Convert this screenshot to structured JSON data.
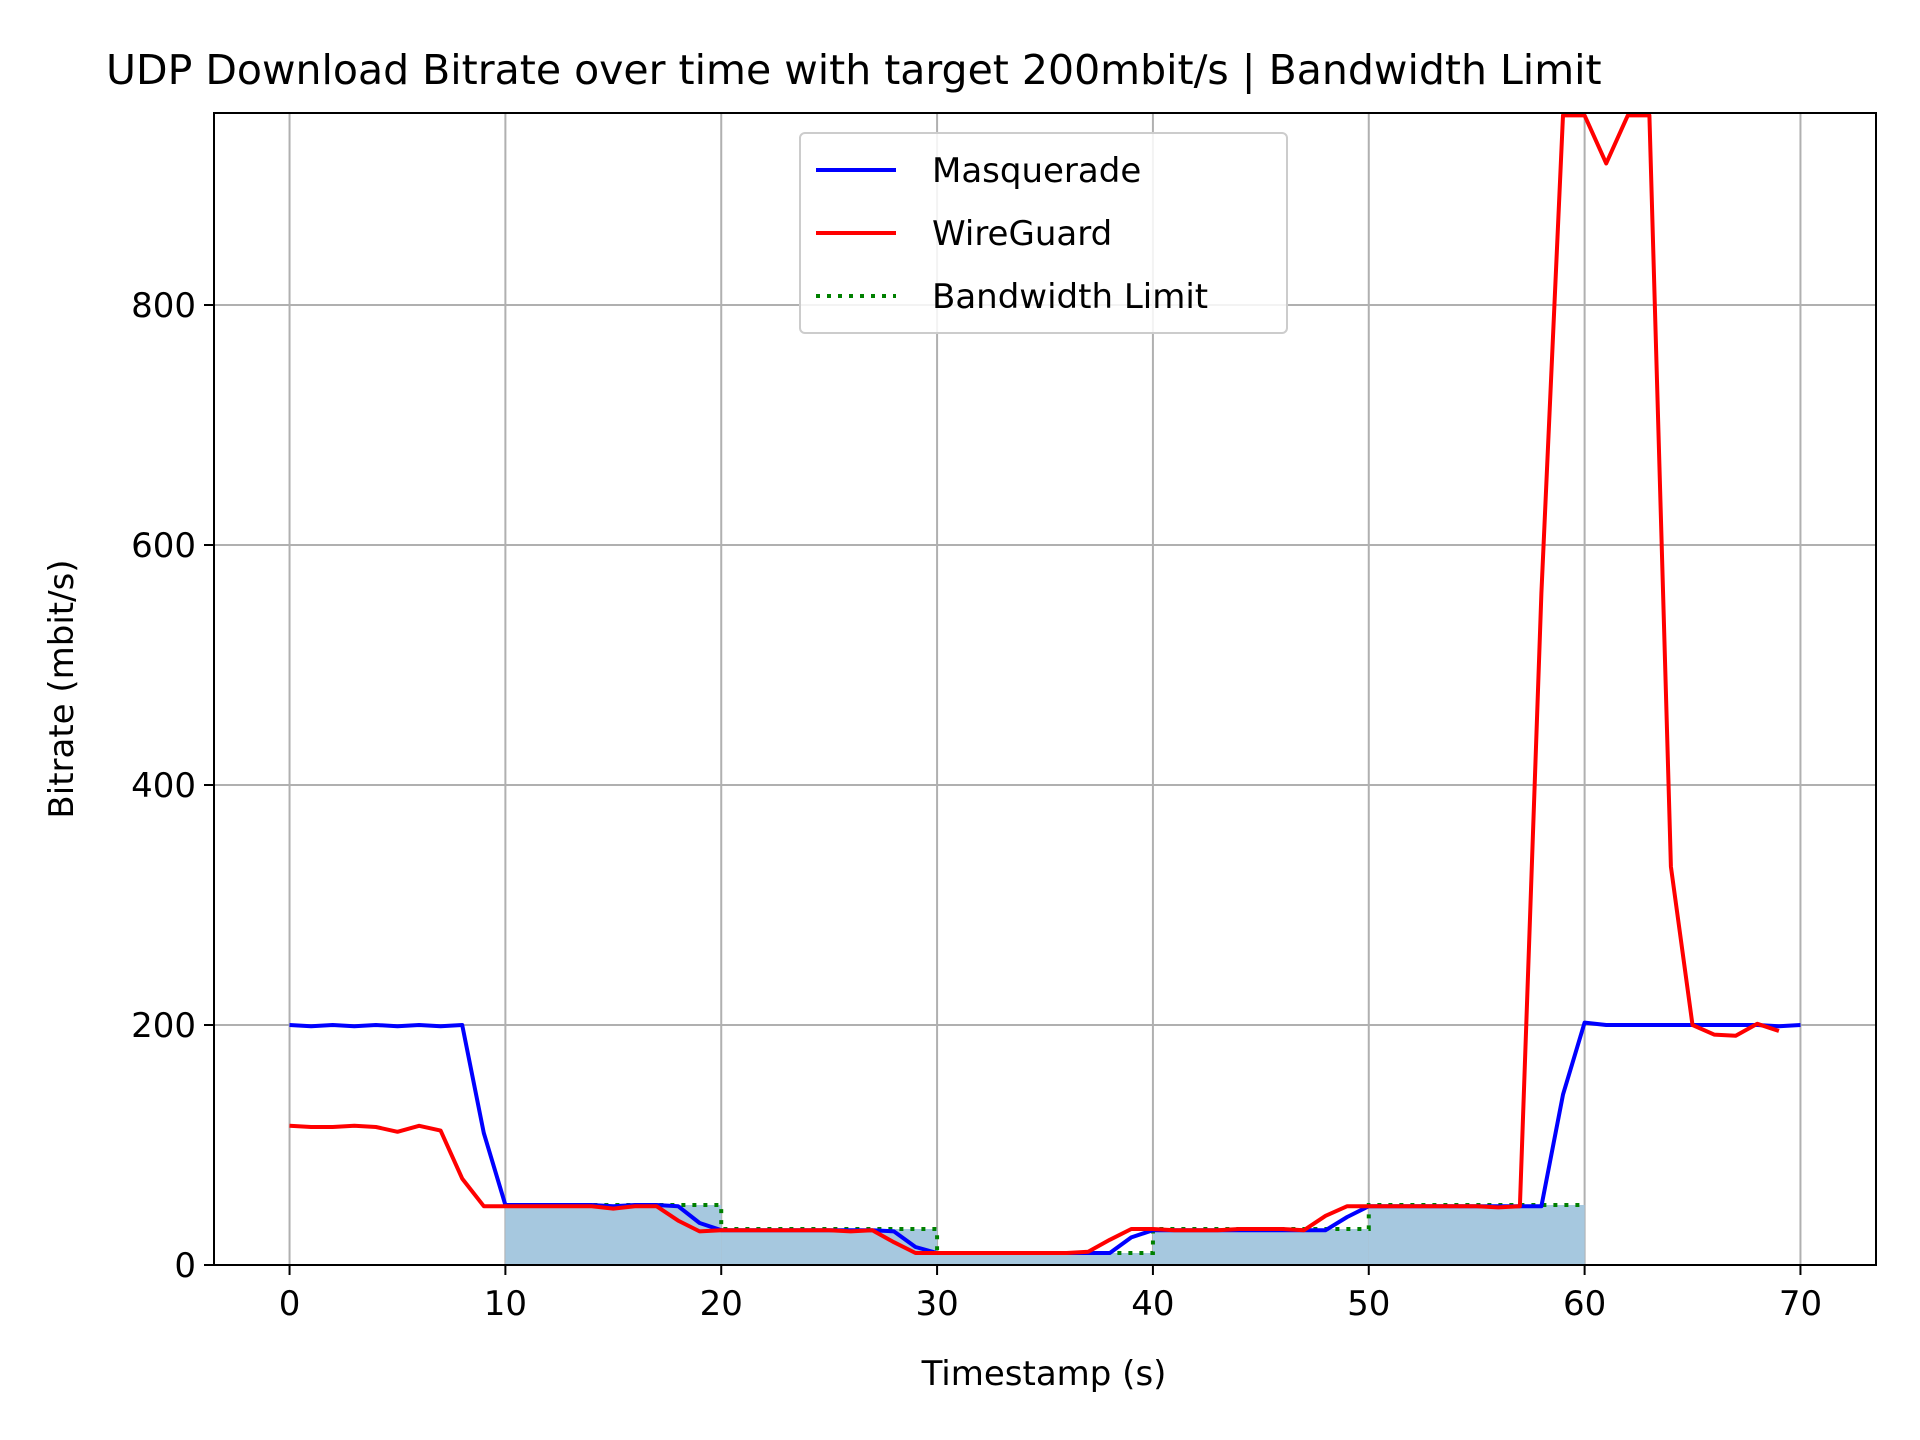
{
  "chart_data": {
    "type": "line",
    "title": "UDP Download Bitrate over time with target 200mbit/s | Bandwidth Limit",
    "xlabel": "Timestamp (s)",
    "ylabel": "Bitrate (mbit/s)",
    "xlim": [
      -3.5,
      73.5
    ],
    "ylim": [
      0,
      960
    ],
    "xticks": [
      0,
      10,
      20,
      30,
      40,
      50,
      60,
      70
    ],
    "yticks": [
      0,
      200,
      400,
      600,
      800
    ],
    "grid": true,
    "legend_position": "upper-center",
    "series": [
      {
        "name": "Masquerade",
        "color": "#0000ff",
        "style": "solid",
        "x": [
          0,
          1,
          2,
          3,
          4,
          5,
          6,
          7,
          8,
          9,
          10,
          11,
          12,
          13,
          14,
          15,
          16,
          17,
          18,
          19,
          20,
          21,
          22,
          23,
          24,
          25,
          26,
          27,
          28,
          29,
          30,
          31,
          32,
          33,
          34,
          35,
          36,
          37,
          38,
          39,
          40,
          41,
          42,
          43,
          44,
          45,
          46,
          47,
          48,
          49,
          50,
          51,
          52,
          53,
          54,
          55,
          56,
          57,
          58,
          59,
          60,
          61,
          62,
          63,
          64,
          65,
          66,
          67,
          68,
          69,
          70
        ],
        "y": [
          200,
          199,
          200,
          199,
          200,
          199,
          200,
          199,
          200,
          110,
          50,
          50,
          50,
          50,
          50,
          49,
          50,
          50,
          49,
          35,
          29,
          29,
          29,
          29,
          29,
          29,
          29,
          29,
          28,
          15,
          10,
          10,
          10,
          10,
          10,
          10,
          10,
          10,
          10,
          23,
          29,
          29,
          29,
          29,
          29,
          29,
          29,
          29,
          29,
          40,
          49,
          49,
          49,
          49,
          49,
          49,
          49,
          49,
          49,
          142,
          202,
          200,
          200,
          200,
          200,
          200,
          200,
          200,
          200,
          199,
          200
        ]
      },
      {
        "name": "WireGuard",
        "color": "#ff0000",
        "style": "solid",
        "x": [
          0,
          1,
          2,
          3,
          4,
          5,
          6,
          7,
          8,
          9,
          10,
          11,
          12,
          13,
          14,
          15,
          16,
          17,
          18,
          19,
          20,
          21,
          22,
          23,
          24,
          25,
          26,
          27,
          28,
          29,
          30,
          31,
          32,
          33,
          34,
          35,
          36,
          37,
          38,
          39,
          40,
          41,
          42,
          43,
          44,
          45,
          46,
          47,
          48,
          49,
          50,
          51,
          52,
          53,
          54,
          55,
          56,
          57,
          58,
          59,
          60,
          61,
          62,
          63,
          64,
          65,
          66,
          67,
          68,
          69
        ],
        "y": [
          116,
          115,
          115,
          116,
          115,
          111,
          116,
          112,
          72,
          49,
          49,
          49,
          49,
          49,
          49,
          47,
          49,
          49,
          37,
          28,
          29,
          29,
          29,
          29,
          29,
          29,
          28,
          29,
          19,
          10,
          10,
          10,
          10,
          10,
          10,
          10,
          10,
          11,
          21,
          30,
          30,
          29,
          29,
          29,
          30,
          30,
          30,
          29,
          41,
          49,
          49,
          49,
          49,
          49,
          49,
          49,
          48,
          49,
          560,
          958,
          958,
          918,
          958,
          958,
          332,
          200,
          192,
          191,
          201,
          195
        ]
      },
      {
        "name": "Bandwidth Limit",
        "color": "#008000",
        "style": "dotted",
        "steps": [
          {
            "x0": 10,
            "x1": 20,
            "y": 50
          },
          {
            "x0": 20,
            "x1": 30,
            "y": 30
          },
          {
            "x0": 30,
            "x1": 40,
            "y": 10
          },
          {
            "x0": 40,
            "x1": 50,
            "y": 30
          },
          {
            "x0": 50,
            "x1": 60,
            "y": 50
          }
        ]
      }
    ],
    "fill": {
      "color": "#a6c8df",
      "steps": [
        {
          "x0": 10,
          "x1": 20,
          "y": 50
        },
        {
          "x0": 20,
          "x1": 30,
          "y": 30
        },
        {
          "x0": 30,
          "x1": 40,
          "y": 10
        },
        {
          "x0": 40,
          "x1": 50,
          "y": 30
        },
        {
          "x0": 50,
          "x1": 60,
          "y": 50
        }
      ]
    }
  }
}
